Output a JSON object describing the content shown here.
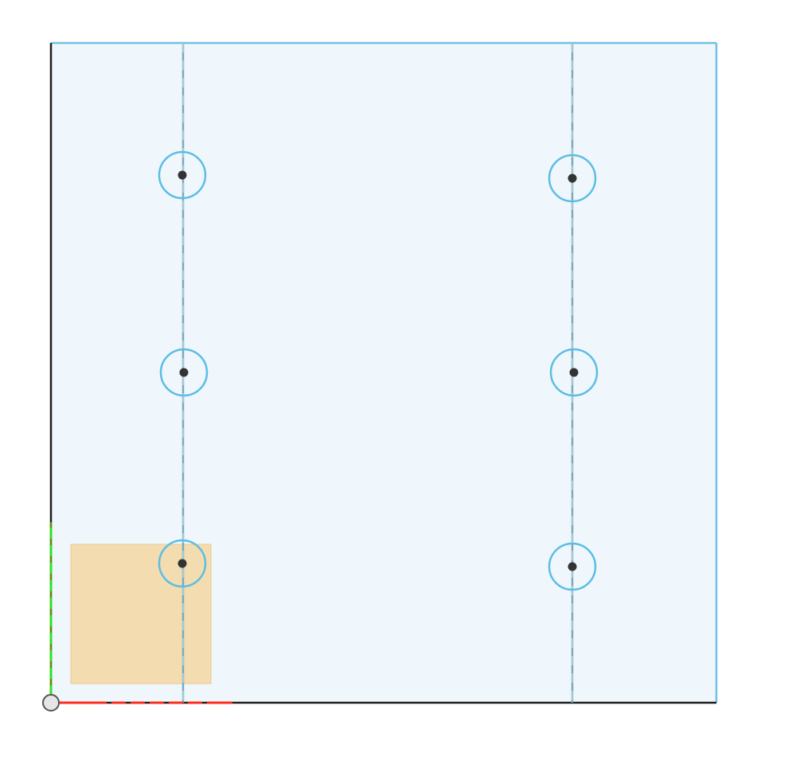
{
  "viewport": {
    "kind": "sketch-canvas",
    "selection_highlight": "#f3ddb0",
    "face_fill": "#eff7fd",
    "edge_color": "#6fc0e3",
    "axis_x_color": "#ff2a1a",
    "axis_y_color": "#33dd22",
    "construction_lines": 2,
    "hole_points": 6,
    "icons": [
      "origin-point-icon",
      "hole-center-icon",
      "selection-highlight"
    ]
  }
}
